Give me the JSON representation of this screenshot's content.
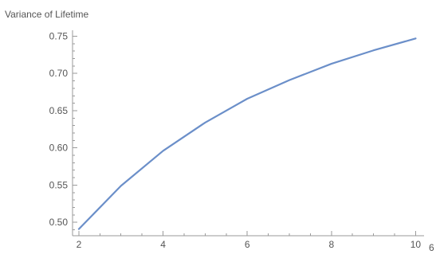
{
  "chart_data": {
    "type": "line",
    "title": "",
    "ylabel": "Variance of Lifetime",
    "xlabel": "6",
    "x": [
      2,
      3,
      4,
      5,
      6,
      7,
      8,
      9,
      10
    ],
    "series": [
      {
        "values": [
          0.491,
          0.549,
          0.596,
          0.634,
          0.666,
          0.691,
          0.713,
          0.731,
          0.747
        ]
      }
    ],
    "xlim": [
      1.85,
      10.2
    ],
    "ylim": [
      0.482,
      0.758
    ],
    "x_major_ticks": [
      2,
      4,
      6,
      8,
      10
    ],
    "x_minor_ticks": [
      2.5,
      3,
      3.5,
      4.5,
      5,
      5.5,
      6.5,
      7,
      7.5,
      8.5,
      9,
      9.5
    ],
    "y_major_ticks": [
      0.5,
      0.55,
      0.6,
      0.65,
      0.7,
      0.75
    ],
    "y_minor_ticks": [
      0.49,
      0.51,
      0.52,
      0.53,
      0.54,
      0.56,
      0.57,
      0.58,
      0.59,
      0.61,
      0.62,
      0.63,
      0.64,
      0.66,
      0.67,
      0.68,
      0.69,
      0.71,
      0.72,
      0.73,
      0.74
    ],
    "x_tick_labels": [
      "2",
      "4",
      "6",
      "8",
      "10"
    ],
    "y_tick_labels": [
      "0.50",
      "0.55",
      "0.60",
      "0.65",
      "0.70",
      "0.75"
    ],
    "grid": false,
    "legend": "none",
    "colors": {
      "series": "#6b8fc9",
      "axis": "#9a9a9a",
      "text": "#555555"
    }
  }
}
